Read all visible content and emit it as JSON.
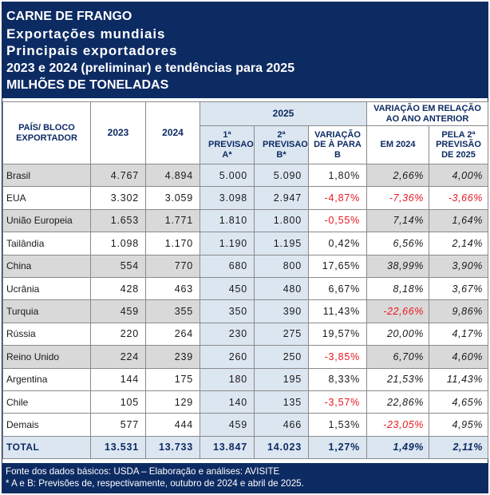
{
  "title": {
    "line1": "CARNE DE FRANGO",
    "line2": "Exportações mundiais",
    "line3": "Principais exportadores",
    "line4": "2023 e 2024 (preliminar) e tendências para 2025",
    "line5": "MILHÕES DE TONELADAS"
  },
  "headers": {
    "country": "PAÍS/ BLOCO EXPORTADOR",
    "y2023": "2023",
    "y2024": "2024",
    "y2025": "2025",
    "prev_a": "1ª PREVISAO A*",
    "prev_b": "2ª PREVISAO B*",
    "var_ab": "VARIAÇÃO DE À PARA B",
    "var_group": "VARIAÇÃO EM RELAÇÃO AO ANO ANTERIOR",
    "em_2024": "EM 2024",
    "pela_2a": "PELA 2ª PREVISÃO DE 2025"
  },
  "rows": [
    {
      "name": "Brasil",
      "y2023": "4.767",
      "y2024": "4.894",
      "a": "5.000",
      "b": "5.090",
      "var_ab": "1,80%",
      "em_2024": "2,66%",
      "pela_2a": "4,00%"
    },
    {
      "name": "EUA",
      "y2023": "3.302",
      "y2024": "3.059",
      "a": "3.098",
      "b": "2.947",
      "var_ab": "-4,87%",
      "em_2024": "-7,36%",
      "pela_2a": "-3,66%"
    },
    {
      "name": "União Europeia",
      "y2023": "1.653",
      "y2024": "1.771",
      "a": "1.810",
      "b": "1.800",
      "var_ab": "-0,55%",
      "em_2024": "7,14%",
      "pela_2a": "1,64%"
    },
    {
      "name": "Tailândia",
      "y2023": "1.098",
      "y2024": "1.170",
      "a": "1.190",
      "b": "1.195",
      "var_ab": "0,42%",
      "em_2024": "6,56%",
      "pela_2a": "2,14%"
    },
    {
      "name": "China",
      "y2023": "554",
      "y2024": "770",
      "a": "680",
      "b": "800",
      "var_ab": "17,65%",
      "em_2024": "38,99%",
      "pela_2a": "3,90%"
    },
    {
      "name": "Ucrânia",
      "y2023": "428",
      "y2024": "463",
      "a": "450",
      "b": "480",
      "var_ab": "6,67%",
      "em_2024": "8,18%",
      "pela_2a": "3,67%"
    },
    {
      "name": "Turquia",
      "y2023": "459",
      "y2024": "355",
      "a": "350",
      "b": "390",
      "var_ab": "11,43%",
      "em_2024": "-22,66%",
      "pela_2a": "9,86%"
    },
    {
      "name": "Rússia",
      "y2023": "220",
      "y2024": "264",
      "a": "230",
      "b": "275",
      "var_ab": "19,57%",
      "em_2024": "20,00%",
      "pela_2a": "4,17%"
    },
    {
      "name": "Reino Unido",
      "y2023": "224",
      "y2024": "239",
      "a": "260",
      "b": "250",
      "var_ab": "-3,85%",
      "em_2024": "6,70%",
      "pela_2a": "4,60%"
    },
    {
      "name": "Argentina",
      "y2023": "144",
      "y2024": "175",
      "a": "180",
      "b": "195",
      "var_ab": "8,33%",
      "em_2024": "21,53%",
      "pela_2a": "11,43%"
    },
    {
      "name": "Chile",
      "y2023": "105",
      "y2024": "129",
      "a": "140",
      "b": "135",
      "var_ab": "-3,57%",
      "em_2024": "22,86%",
      "pela_2a": "4,65%"
    },
    {
      "name": "Demais",
      "y2023": "577",
      "y2024": "444",
      "a": "459",
      "b": "466",
      "var_ab": "1,53%",
      "em_2024": "-23,05%",
      "pela_2a": "4,95%"
    }
  ],
  "total": {
    "name": "TOTAL",
    "y2023": "13.531",
    "y2024": "13.733",
    "a": "13.847",
    "b": "14.023",
    "var_ab": "1,27%",
    "em_2024": "1,49%",
    "pela_2a": "2,11%"
  },
  "footer": {
    "line1": "Fonte dos dados básicos: USDA – Elaboração e análises: AVISITE",
    "line2": "*   A e B: Previsões de, respectivamente, outubro de 2024 e abril de 2025."
  },
  "colors": {
    "header_navy": "#0d2b63",
    "negative": "#e8171f",
    "shade_blue": "#dce6f1",
    "shade_gray": "#d9d9d9"
  }
}
